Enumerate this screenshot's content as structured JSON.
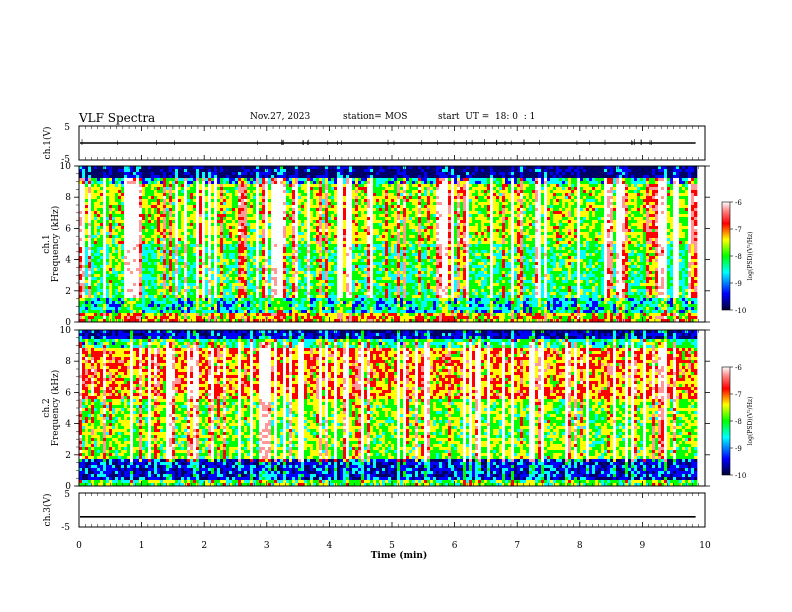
{
  "header": {
    "title": "VLF Spectra",
    "date": "Nov.27, 2023",
    "station": "station= MOS",
    "start_ut": "start  UT =  18: 0  : 1"
  },
  "chart_data": [
    {
      "type": "line",
      "panel": "ch1-waveform",
      "ylabel": "ch.1(V)",
      "ylim": [
        -5,
        5
      ],
      "yticks": [
        "5",
        "-5"
      ],
      "xlim": [
        0,
        10
      ],
      "series": [
        {
          "values_description": "flat trace near 0 V",
          "level": 0
        }
      ]
    },
    {
      "type": "heatmap",
      "panel": "ch1-spectrogram",
      "ylabel": "ch.1\nFrequency (kHz)",
      "ylabel_top": "ch.1",
      "ylabel_bottom": "Frequency (kHz)",
      "ylim": [
        0,
        10
      ],
      "yticks": [
        "0",
        "2",
        "4",
        "6",
        "8",
        "10"
      ],
      "xlim": [
        0,
        10
      ],
      "data_end_min": 9.85,
      "colorbar": {
        "label": "log(PSD)(V²/Hz)",
        "ticks": [
          "-6",
          "-7",
          "-8",
          "-9",
          "-10"
        ],
        "range": [
          -10,
          -6
        ]
      }
    },
    {
      "type": "heatmap",
      "panel": "ch2-spectrogram",
      "ylabel_top": "ch.2",
      "ylabel_bottom": "Frequency (kHz)",
      "ylim": [
        0,
        10
      ],
      "yticks": [
        "0",
        "2",
        "4",
        "6",
        "8",
        "10"
      ],
      "xlim": [
        0,
        10
      ],
      "data_end_min": 9.85,
      "colorbar": {
        "label": "log(PSD)(V²/Hz)",
        "ticks": [
          "-6",
          "-7",
          "-8",
          "-9",
          "-10"
        ],
        "range": [
          -10,
          -6
        ]
      }
    },
    {
      "type": "line",
      "panel": "ch3-waveform",
      "ylabel": "ch.3(V)",
      "ylim": [
        -5,
        5
      ],
      "yticks": [
        "5",
        "-5"
      ],
      "xlim": [
        0,
        10
      ],
      "xlabel": "Time (min)",
      "xticks": [
        "0",
        "1",
        "2",
        "3",
        "4",
        "5",
        "6",
        "7",
        "8",
        "9",
        "10"
      ],
      "series": [
        {
          "values_description": "flat trace near -2 V",
          "level": -2
        }
      ]
    }
  ],
  "colors": {
    "colormap": [
      "#000066",
      "#0000ff",
      "#00ffff",
      "#00ff00",
      "#ffff00",
      "#ff0000",
      "#ff9999",
      "#ffffff"
    ]
  }
}
